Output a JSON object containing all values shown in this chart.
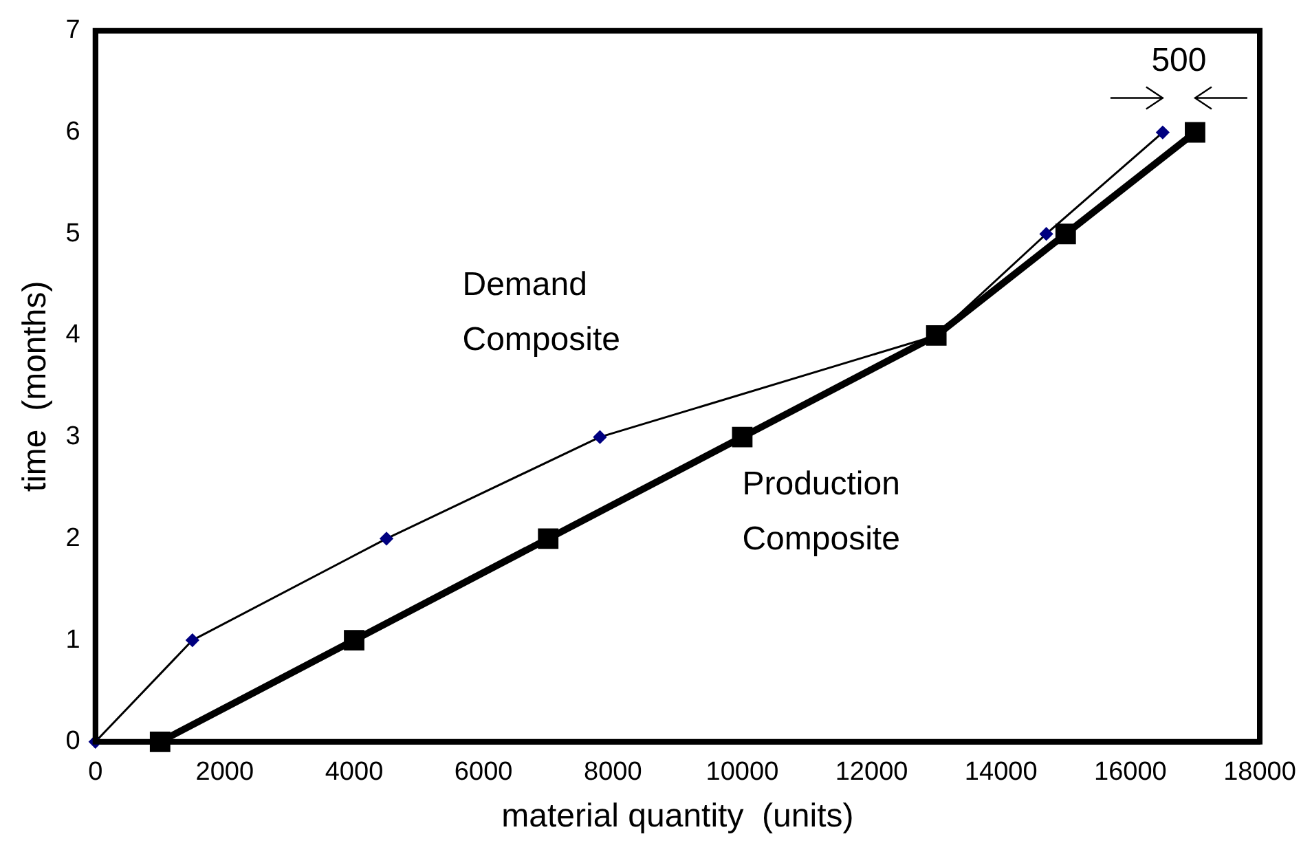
{
  "chart_data": {
    "type": "line",
    "xlabel": "material quantity  (units)",
    "ylabel": "time  (months)",
    "xlim": [
      0,
      18000
    ],
    "xticks": [
      0,
      2000,
      4000,
      6000,
      8000,
      10000,
      12000,
      14000,
      16000,
      18000
    ],
    "ylim": [
      0,
      7
    ],
    "yticks": [
      0,
      1,
      2,
      3,
      4,
      5,
      6,
      7
    ],
    "grid": false,
    "legend": false,
    "series": [
      {
        "name": "Demand Composite",
        "color": "#000080",
        "marker": "diamond",
        "x": [
          0,
          1500,
          4500,
          7800,
          13000,
          14700,
          16500
        ],
        "values": [
          0,
          1,
          2,
          3,
          4,
          5,
          6
        ]
      },
      {
        "name": "Production Composite",
        "color": "#000000",
        "marker": "square",
        "x": [
          1000,
          4000,
          7000,
          10000,
          13000,
          15000,
          17000
        ],
        "values": [
          0,
          1,
          2,
          3,
          4,
          5,
          6
        ]
      }
    ],
    "annotations": [
      "500"
    ]
  }
}
